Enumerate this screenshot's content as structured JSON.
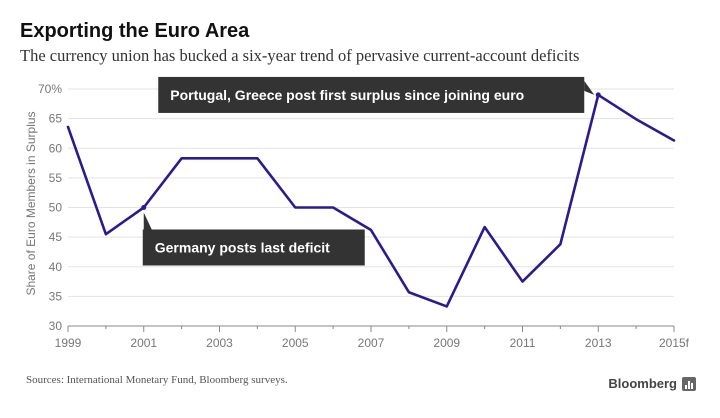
{
  "header": {
    "title": "Exporting the Euro Area",
    "subtitle": "The currency union has bucked a six-year trend of pervasive current-account deficits"
  },
  "footer": {
    "source": "Sources: International Monetary Fund, Bloomberg surveys.",
    "brand": "Bloomberg"
  },
  "colors": {
    "line": "#2c1a8f",
    "grid": "#e3e3e3",
    "annotation_bg": "#333333"
  },
  "chart_data": {
    "type": "line",
    "title": "Exporting the Euro Area",
    "subtitle": "The currency union has bucked a six-year trend of pervasive current-account deficits",
    "xlabel": "",
    "ylabel": "Share of Euro Members in Surplus",
    "ylim": [
      30,
      70
    ],
    "xlim": [
      1999,
      2015
    ],
    "grid": true,
    "x": [
      1999,
      2000,
      2001,
      2002,
      2003,
      2004,
      2005,
      2006,
      2007,
      2008,
      2009,
      2010,
      2011,
      2012,
      2013,
      2014,
      2015
    ],
    "series": [
      {
        "name": "Share of Euro Members in Surplus",
        "values": [
          63.6,
          45.5,
          50.0,
          58.3,
          58.3,
          58.3,
          50.0,
          50.0,
          46.2,
          35.7,
          33.3,
          46.7,
          37.5,
          43.8,
          69.0,
          64.9,
          61.3
        ]
      }
    ],
    "y_ticks": [
      30,
      35,
      40,
      45,
      50,
      55,
      60,
      65,
      70
    ],
    "y_tick_labels": [
      "30",
      "35",
      "40",
      "45",
      "50",
      "55",
      "60",
      "65",
      "70%"
    ],
    "x_ticks": [
      1999,
      2001,
      2003,
      2005,
      2007,
      2009,
      2011,
      2013,
      2015
    ],
    "x_tick_labels": [
      "1999",
      "2001",
      "2003",
      "2005",
      "2007",
      "2009",
      "2011",
      "2013",
      "2015f"
    ],
    "annotations": [
      {
        "text": "Germany posts last deficit",
        "x": 2001,
        "y": 50.0
      },
      {
        "text": "Portugal, Greece post first surplus since joining euro",
        "x": 2013,
        "y": 69.0
      }
    ]
  }
}
